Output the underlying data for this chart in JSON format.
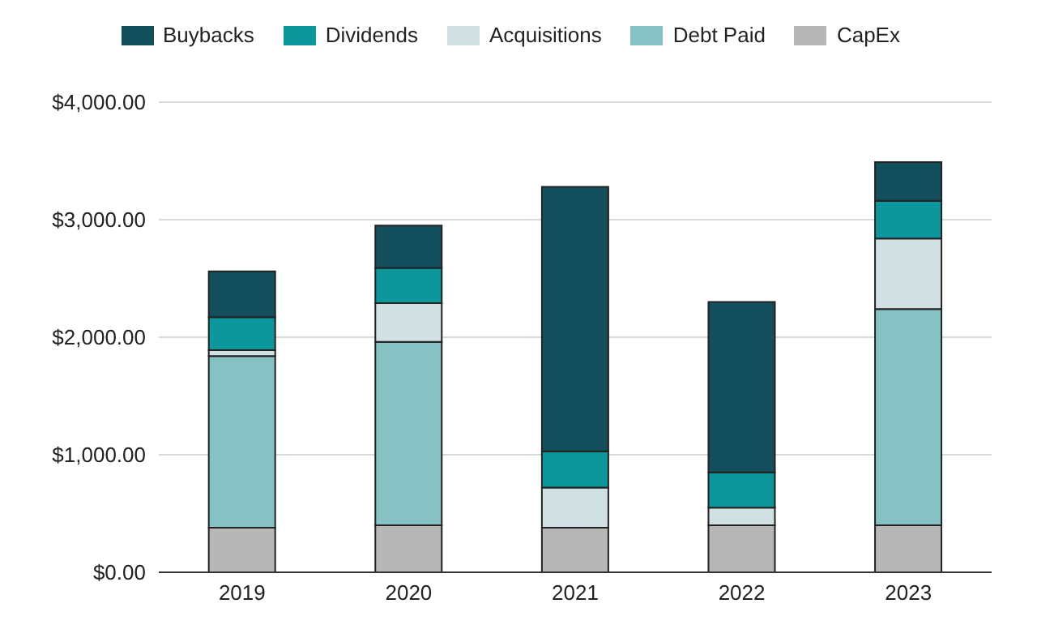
{
  "chart_data": {
    "type": "bar",
    "stacked": true,
    "categories": [
      "2019",
      "2020",
      "2021",
      "2022",
      "2023"
    ],
    "series": [
      {
        "name": "CapEx",
        "color": "#b7b7b7",
        "values": [
          380,
          400,
          380,
          400,
          400
        ]
      },
      {
        "name": "Debt Paid",
        "color": "#86c2c4",
        "values": [
          1460,
          1560,
          0,
          0,
          1840
        ]
      },
      {
        "name": "Acquisitions",
        "color": "#d0e0e3",
        "values": [
          50,
          330,
          340,
          150,
          600
        ]
      },
      {
        "name": "Dividends",
        "color": "#0b979b",
        "values": [
          280,
          300,
          310,
          300,
          320
        ]
      },
      {
        "name": "Buybacks",
        "color": "#134f5c",
        "values": [
          390,
          360,
          2250,
          1450,
          330
        ]
      }
    ],
    "ylim": [
      0,
      4000
    ],
    "yticks": [
      {
        "value": 0,
        "label": "$0.00"
      },
      {
        "value": 1000,
        "label": "$1,000.00"
      },
      {
        "value": 2000,
        "label": "$2,000.00"
      },
      {
        "value": 3000,
        "label": "$3,000.00"
      },
      {
        "value": 4000,
        "label": "$4,000.00"
      }
    ],
    "grid": "y",
    "legend": "top"
  }
}
